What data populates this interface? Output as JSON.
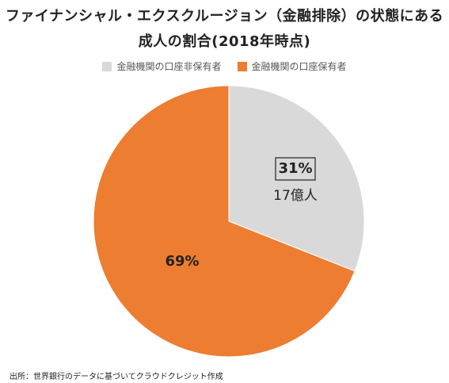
{
  "title_line1": "ファイナンシャル・エクスクルージョン（金融排除）の状態にある",
  "title_line2": "成人の割合(2018年時点)",
  "source": "出所：世界銀行のデータに基づいてクラウドクレジット作成",
  "chart_data": {
    "type": "pie",
    "series": [
      {
        "name": "金融機関の口座非保有者",
        "value": 31,
        "label": "31%",
        "sublabel": "17億人",
        "color": "#d9d9d9"
      },
      {
        "name": "金融機関の口座保有者",
        "value": 69,
        "label": "69%",
        "color": "#ed7d31"
      }
    ],
    "legend": "top",
    "start_angle": "top",
    "direction": "clockwise"
  }
}
